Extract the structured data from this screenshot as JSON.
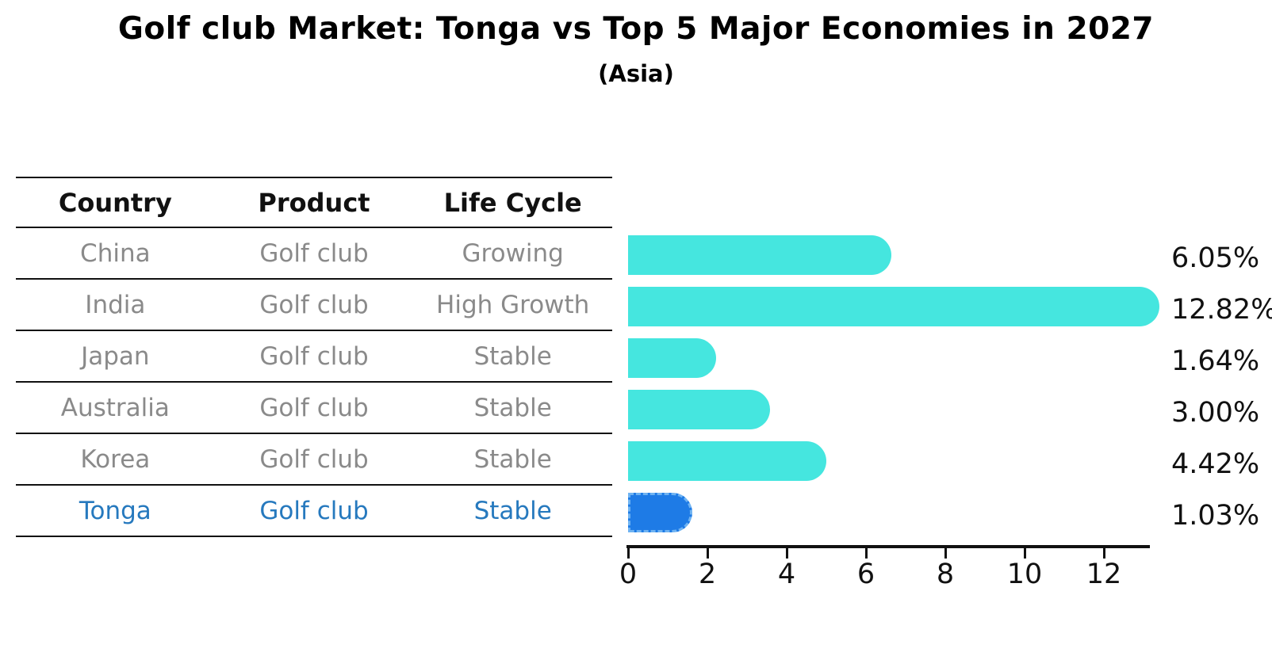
{
  "title": "Golf club Market: Tonga vs Top 5 Major Economies in 2027",
  "subtitle": "(Asia)",
  "table": {
    "headers": [
      "Country",
      "Product",
      "Life Cycle"
    ],
    "rows": [
      {
        "country": "China",
        "product": "Golf club",
        "life_cycle": "Growing"
      },
      {
        "country": "India",
        "product": "Golf club",
        "life_cycle": "High Growth"
      },
      {
        "country": "Japan",
        "product": "Golf club",
        "life_cycle": "Stable"
      },
      {
        "country": "Australia",
        "product": "Golf club",
        "life_cycle": "Stable"
      },
      {
        "country": "Korea",
        "product": "Golf club",
        "life_cycle": "Stable"
      },
      {
        "country": "Tonga",
        "product": "Golf club",
        "life_cycle": "Stable"
      }
    ],
    "highlighted_row": "Tonga"
  },
  "chart_data": {
    "type": "bar",
    "orientation": "horizontal",
    "categories": [
      "China",
      "India",
      "Japan",
      "Australia",
      "Korea",
      "Tonga"
    ],
    "values": [
      6.05,
      12.82,
      1.64,
      3.0,
      4.42,
      1.03
    ],
    "labels": [
      "6.05%",
      "12.82%",
      "1.64%",
      "3.00%",
      "4.42%",
      "1.03%"
    ],
    "x_ticks": [
      0,
      2,
      4,
      6,
      8,
      10,
      12
    ],
    "xlim": [
      0,
      13.2
    ],
    "grid": false,
    "legend": false,
    "value_unit": "%",
    "bar_color": "#45e6df",
    "highlight_color": "#1e7be6",
    "highlight_index": 5,
    "text_color_default": "#8a8a8a",
    "text_color_highlight": "#2679be"
  }
}
